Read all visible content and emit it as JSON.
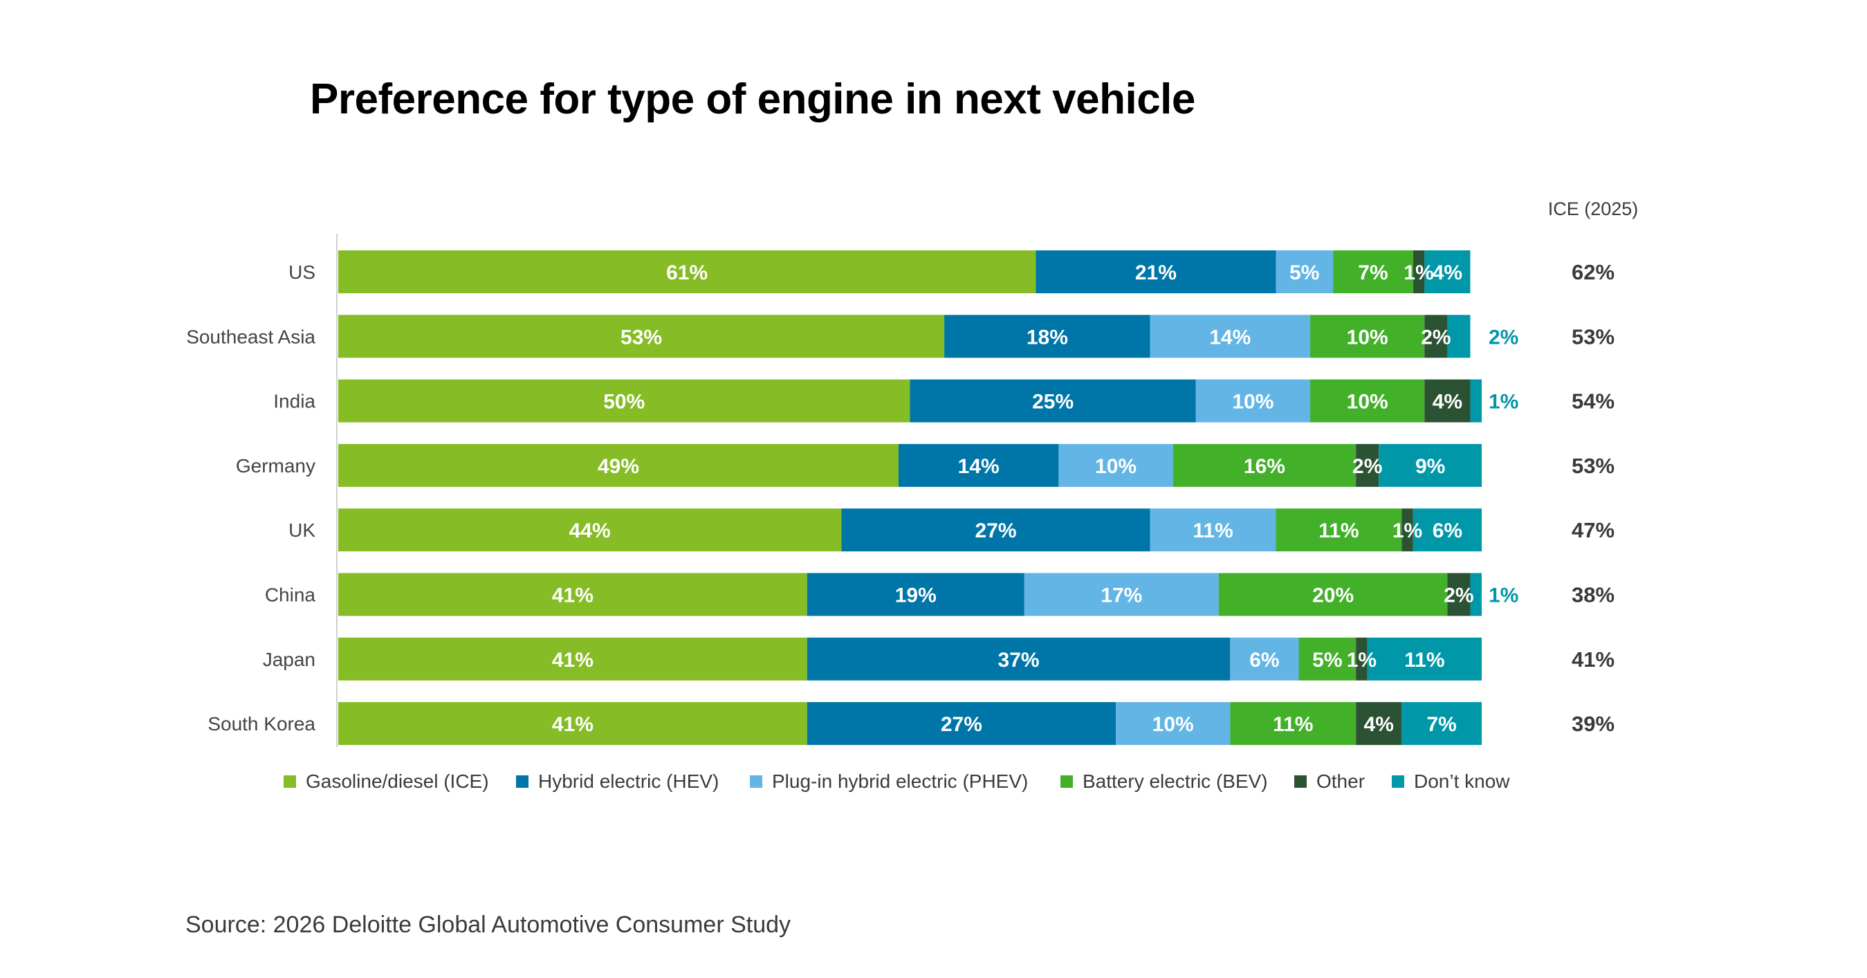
{
  "chart_data": {
    "type": "bar",
    "orientation": "horizontal",
    "stacked": true,
    "title": "Preference for type of engine in next vehicle",
    "source": "Source: 2026 Deloitte Global Automotive Consumer Study",
    "categories": [
      "US",
      "Southeast Asia",
      "India",
      "Germany",
      "UK",
      "China",
      "Japan",
      "South Korea"
    ],
    "xlim": [
      0,
      100
    ],
    "series": [
      {
        "name": "Gasoline/diesel (ICE)",
        "color": "#86bc25",
        "values": [
          61,
          53,
          50,
          49,
          44,
          41,
          41,
          41
        ]
      },
      {
        "name": "Hybrid electric (HEV)",
        "color": "#0076a8",
        "values": [
          21,
          18,
          25,
          14,
          27,
          19,
          37,
          27
        ]
      },
      {
        "name": "Plug-in hybrid electric (PHEV)",
        "color": "#62b5e5",
        "values": [
          5,
          14,
          10,
          10,
          11,
          17,
          6,
          10
        ]
      },
      {
        "name": "Battery electric (BEV)",
        "color": "#43b02a",
        "values": [
          7,
          10,
          10,
          16,
          11,
          20,
          5,
          11
        ]
      },
      {
        "name": "Other",
        "color": "#2c5234",
        "values": [
          1,
          2,
          4,
          2,
          1,
          2,
          1,
          4
        ]
      },
      {
        "name": "Don’t know",
        "color": "#0097a9",
        "values": [
          4,
          2,
          1,
          9,
          6,
          1,
          11,
          7
        ]
      }
    ],
    "outside_label_color": "#0097a9",
    "ice_2025": {
      "header": "ICE (2025)",
      "values": [
        "62%",
        "53%",
        "54%",
        "53%",
        "47%",
        "38%",
        "41%",
        "39%"
      ]
    },
    "legend_position": "bottom",
    "grid": false
  }
}
